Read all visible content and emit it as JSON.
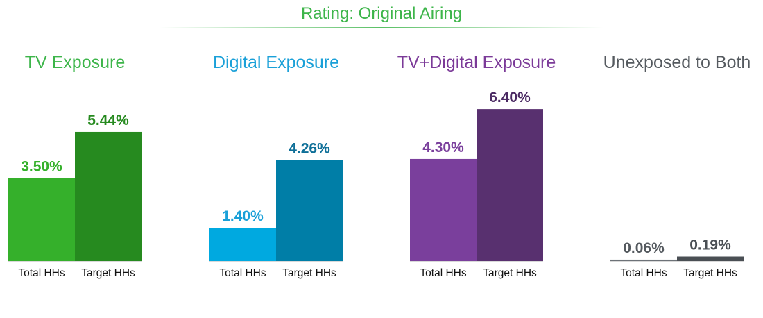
{
  "title": "Rating: Original Airing",
  "chart_data": {
    "type": "bar",
    "title": "Rating: Original Airing",
    "unit": "%",
    "ylim": [
      0,
      7
    ],
    "grid": false,
    "groups": [
      {
        "name": "TV Exposure",
        "title_color": "#3db54a",
        "bars": [
          {
            "category": "Total HHs",
            "value": 3.5,
            "label": "3.50%",
            "color": "#35b02b",
            "label_color": "#35b02b"
          },
          {
            "category": "Target HHs",
            "value": 5.44,
            "label": "5.44%",
            "color": "#268a1f",
            "label_color": "#268a1f"
          }
        ]
      },
      {
        "name": "Digital Exposure",
        "title_color": "#1aa0d8",
        "bars": [
          {
            "category": "Total HHs",
            "value": 1.4,
            "label": "1.40%",
            "color": "#00a9e0",
            "label_color": "#1aa0d8"
          },
          {
            "category": "Target HHs",
            "value": 4.26,
            "label": "4.26%",
            "color": "#007ea7",
            "label_color": "#0e6f98"
          }
        ]
      },
      {
        "name": "TV+Digital Exposure",
        "title_color": "#7b3a98",
        "bars": [
          {
            "category": "Total HHs",
            "value": 4.3,
            "label": "4.30%",
            "color": "#7a3f9c",
            "label_color": "#7a3f9c"
          },
          {
            "category": "Target HHs",
            "value": 6.4,
            "label": "6.40%",
            "color": "#58306f",
            "label_color": "#4b2a63"
          }
        ]
      },
      {
        "name": "Unexposed to Both",
        "title_color": "#555a5f",
        "bars": [
          {
            "category": "Total HHs",
            "value": 0.06,
            "label": "0.06%",
            "color": "#6d7278",
            "label_color": "#555a5f"
          },
          {
            "category": "Target HHs",
            "value": 0.19,
            "label": "0.19%",
            "color": "#4a4f54",
            "label_color": "#4a4f54"
          }
        ]
      }
    ]
  }
}
